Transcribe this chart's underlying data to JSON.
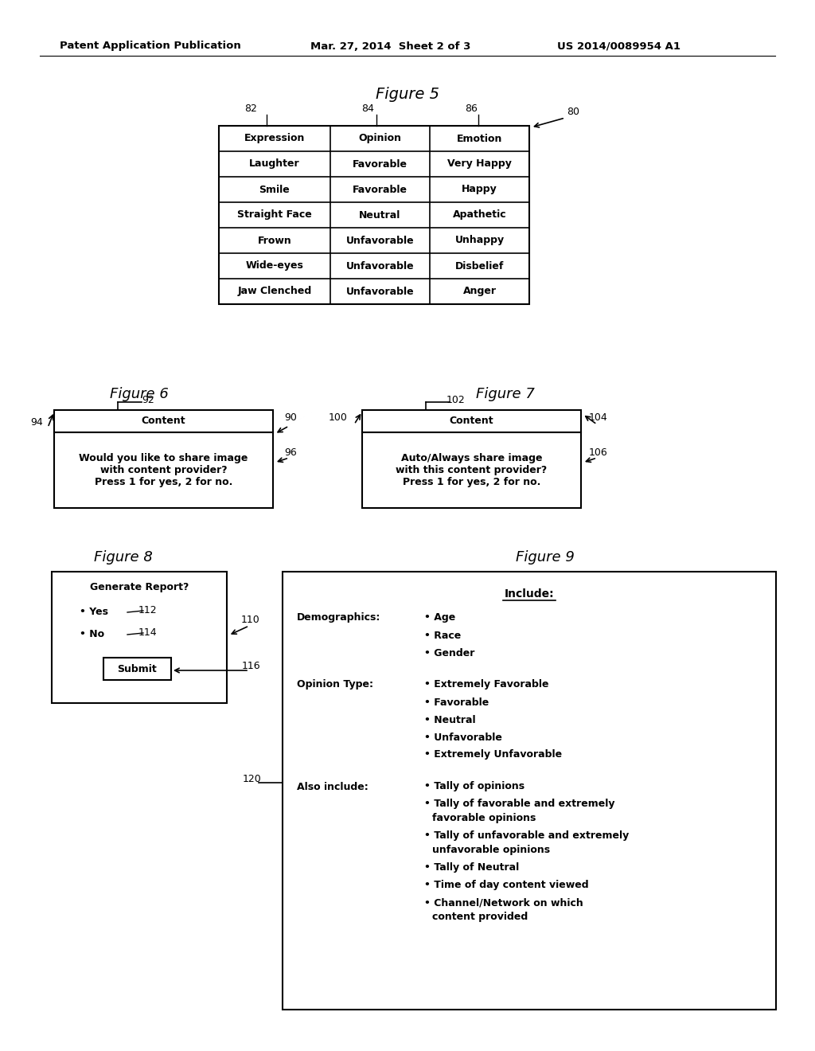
{
  "header_left": "Patent Application Publication",
  "header_mid": "Mar. 27, 2014  Sheet 2 of 3",
  "header_right": "US 2014/0089954 A1",
  "fig5_title": "Figure 5",
  "fig5_label": "80",
  "fig5_col_labels": [
    "82",
    "84",
    "86"
  ],
  "fig5_headers": [
    "Expression",
    "Opinion",
    "Emotion"
  ],
  "fig5_rows": [
    [
      "Laughter",
      "Favorable",
      "Very Happy"
    ],
    [
      "Smile",
      "Favorable",
      "Happy"
    ],
    [
      "Straight Face",
      "Neutral",
      "Apathetic"
    ],
    [
      "Frown",
      "Unfavorable",
      "Unhappy"
    ],
    [
      "Wide-eyes",
      "Unfavorable",
      "Disbelief"
    ],
    [
      "Jaw Clenched",
      "Unfavorable",
      "Anger"
    ]
  ],
  "fig6_title": "Figure 6",
  "fig6_label_94": "94",
  "fig6_label_92": "92",
  "fig6_label_90": "90",
  "fig6_label_96": "96",
  "fig6_header": "Content",
  "fig6_body": "Would you like to share image\nwith content provider?\nPress 1 for yes, 2 for no.",
  "fig7_title": "Figure 7",
  "fig7_label_100": "100",
  "fig7_label_102": "102",
  "fig7_label_104": "104",
  "fig7_label_106": "106",
  "fig7_header": "Content",
  "fig7_body": "Auto/Always share image\nwith this content provider?\nPress 1 for yes, 2 for no.",
  "fig8_title": "Figure 8",
  "fig8_label_110": "110",
  "fig8_label_112": "112",
  "fig8_label_114": "114",
  "fig8_label_116": "116",
  "fig8_header": "Generate Report?",
  "fig8_yes": "• Yes",
  "fig8_no": "• No",
  "fig8_submit": "Submit",
  "fig9_title": "Figure 9",
  "fig9_label_120": "120",
  "fig9_include": "Include:",
  "fig9_demo_label": "Demographics:",
  "fig9_demo_items": [
    "Age",
    "Race",
    "Gender"
  ],
  "fig9_opinion_label": "Opinion Type:",
  "fig9_opinion_items": [
    "Extremely Favorable",
    "Favorable",
    "Neutral",
    "Unfavorable",
    "Extremely Unfavorable"
  ],
  "fig9_also_label": "Also include:",
  "fig9_also_items": [
    [
      "Tally of opinions"
    ],
    [
      "Tally of favorable and extremely",
      "favorable opinions"
    ],
    [
      "Tally of unfavorable and extremely",
      "unfavorable opinions"
    ],
    [
      "Tally of Neutral"
    ],
    [
      "Time of day content viewed"
    ],
    [
      "Channel/Network on which",
      "content provided"
    ]
  ],
  "bg_color": "#ffffff",
  "text_color": "#000000"
}
